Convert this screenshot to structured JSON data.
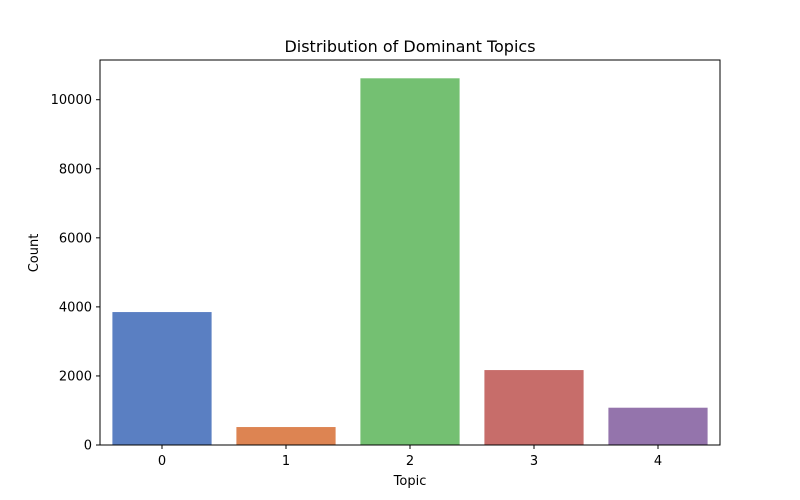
{
  "chart_data": {
    "type": "bar",
    "title": "Distribution of Dominant Topics",
    "xlabel": "Topic",
    "ylabel": "Count",
    "categories": [
      "0",
      "1",
      "2",
      "3",
      "4"
    ],
    "values": [
      3850,
      520,
      10620,
      2170,
      1080
    ],
    "ylim": [
      0,
      11150
    ],
    "yticks": [
      0,
      2000,
      4000,
      6000,
      8000,
      10000
    ],
    "grid": false,
    "colors": [
      "#5a7fc2",
      "#dd8452",
      "#74c072",
      "#c76d6a",
      "#9474ac"
    ]
  }
}
